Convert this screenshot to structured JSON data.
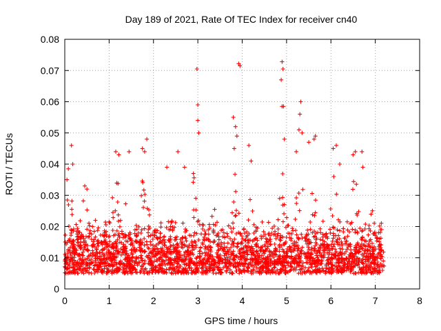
{
  "chart_data": {
    "type": "scatter",
    "title": "Day 189 of 2021, Rate Of TEC Index for receiver cn40",
    "xlabel": "GPS time / hours",
    "ylabel": "ROTI / TECUs",
    "xlim": [
      0,
      8
    ],
    "ylim": [
      0,
      0.08
    ],
    "xticks": [
      "0",
      "1",
      "2",
      "3",
      "4",
      "5",
      "6",
      "7",
      "8"
    ],
    "yticks": [
      "0",
      "0.01",
      "0.02",
      "0.03",
      "0.04",
      "0.05",
      "0.06",
      "0.07",
      "0.08"
    ],
    "grid": true,
    "marker": "+",
    "color": "#ff0000",
    "x_range_of_data": [
      0,
      7.2
    ],
    "band_low": 0.005,
    "band_high": 0.018,
    "outliers": [
      {
        "x": 0.05,
        "y": 0.035
      },
      {
        "x": 0.08,
        "y": 0.0385
      },
      {
        "x": 0.15,
        "y": 0.046
      },
      {
        "x": 0.18,
        "y": 0.04
      },
      {
        "x": 0.45,
        "y": 0.033
      },
      {
        "x": 0.5,
        "y": 0.032
      },
      {
        "x": 1.15,
        "y": 0.044
      },
      {
        "x": 1.22,
        "y": 0.043
      },
      {
        "x": 1.45,
        "y": 0.044
      },
      {
        "x": 1.75,
        "y": 0.045
      },
      {
        "x": 1.8,
        "y": 0.044
      },
      {
        "x": 1.85,
        "y": 0.048
      },
      {
        "x": 2.3,
        "y": 0.039
      },
      {
        "x": 2.55,
        "y": 0.044
      },
      {
        "x": 2.7,
        "y": 0.039
      },
      {
        "x": 2.9,
        "y": 0.037
      },
      {
        "x": 2.98,
        "y": 0.0705
      },
      {
        "x": 3.0,
        "y": 0.059
      },
      {
        "x": 3.02,
        "y": 0.05
      },
      {
        "x": 3.0,
        "y": 0.054
      },
      {
        "x": 3.8,
        "y": 0.055
      },
      {
        "x": 3.85,
        "y": 0.052
      },
      {
        "x": 3.82,
        "y": 0.045
      },
      {
        "x": 3.88,
        "y": 0.049
      },
      {
        "x": 3.92,
        "y": 0.0722
      },
      {
        "x": 3.95,
        "y": 0.0715
      },
      {
        "x": 4.15,
        "y": 0.046
      },
      {
        "x": 4.2,
        "y": 0.041
      },
      {
        "x": 4.9,
        "y": 0.0728
      },
      {
        "x": 4.92,
        "y": 0.0705
      },
      {
        "x": 4.88,
        "y": 0.067
      },
      {
        "x": 4.9,
        "y": 0.0585
      },
      {
        "x": 4.93,
        "y": 0.0585
      },
      {
        "x": 4.95,
        "y": 0.048
      },
      {
        "x": 5.22,
        "y": 0.044
      },
      {
        "x": 5.28,
        "y": 0.051
      },
      {
        "x": 5.3,
        "y": 0.056
      },
      {
        "x": 5.32,
        "y": 0.06
      },
      {
        "x": 5.35,
        "y": 0.05
      },
      {
        "x": 5.5,
        "y": 0.047
      },
      {
        "x": 5.62,
        "y": 0.048
      },
      {
        "x": 5.65,
        "y": 0.049
      },
      {
        "x": 6.05,
        "y": 0.045
      },
      {
        "x": 6.12,
        "y": 0.046
      },
      {
        "x": 6.2,
        "y": 0.04
      },
      {
        "x": 6.5,
        "y": 0.043
      },
      {
        "x": 6.55,
        "y": 0.044
      },
      {
        "x": 6.7,
        "y": 0.044
      },
      {
        "x": 6.72,
        "y": 0.039
      }
    ],
    "peaks": [
      {
        "x": 0.1,
        "y": 0.034
      },
      {
        "x": 0.45,
        "y": 0.031
      },
      {
        "x": 1.15,
        "y": 0.041
      },
      {
        "x": 1.35,
        "y": 0.034
      },
      {
        "x": 1.8,
        "y": 0.041
      },
      {
        "x": 2.55,
        "y": 0.03
      },
      {
        "x": 2.9,
        "y": 0.036
      },
      {
        "x": 3.35,
        "y": 0.03
      },
      {
        "x": 3.85,
        "y": 0.04
      },
      {
        "x": 4.2,
        "y": 0.034
      },
      {
        "x": 4.9,
        "y": 0.04
      },
      {
        "x": 5.3,
        "y": 0.04
      },
      {
        "x": 5.6,
        "y": 0.034
      },
      {
        "x": 6.05,
        "y": 0.04
      },
      {
        "x": 6.55,
        "y": 0.038
      },
      {
        "x": 6.95,
        "y": 0.026
      },
      {
        "x": 7.15,
        "y": 0.027
      }
    ]
  }
}
